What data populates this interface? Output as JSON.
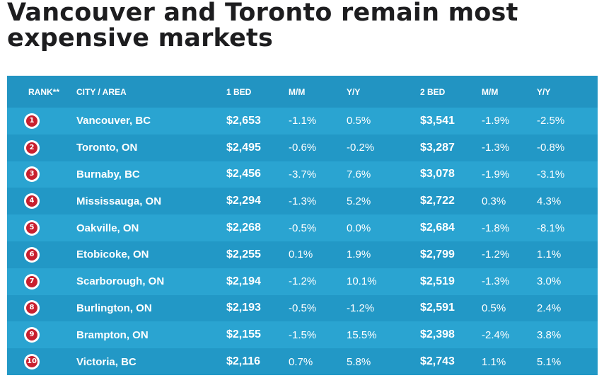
{
  "title": "Vancouver and Toronto remain most expensive markets",
  "colors": {
    "header_bg": "#2294c2",
    "row_light": "#2aa4d1",
    "row_dark": "#2298c6",
    "badge": "#c8202f",
    "text": "#ffffff"
  },
  "chart_data": {
    "type": "table",
    "title": "Vancouver and Toronto remain most expensive markets",
    "columns": [
      "RANK**",
      "CITY / AREA",
      "1 BED",
      "M/M",
      "Y/Y",
      "2 BED",
      "M/M",
      "Y/Y"
    ],
    "rows": [
      {
        "rank": "1",
        "city": "Vancouver, BC",
        "bed1": "$2,653",
        "mm1": "-1.1%",
        "yy1": "0.5%",
        "bed2": "$3,541",
        "mm2": "-1.9%",
        "yy2": "-2.5%"
      },
      {
        "rank": "2",
        "city": "Toronto, ON",
        "bed1": "$2,495",
        "mm1": "-0.6%",
        "yy1": "-0.2%",
        "bed2": "$3,287",
        "mm2": "-1.3%",
        "yy2": "-0.8%"
      },
      {
        "rank": "3",
        "city": "Burnaby, BC",
        "bed1": "$2,456",
        "mm1": "-3.7%",
        "yy1": "7.6%",
        "bed2": "$3,078",
        "mm2": "-1.9%",
        "yy2": "-3.1%"
      },
      {
        "rank": "4",
        "city": "Mississauga, ON",
        "bed1": "$2,294",
        "mm1": "-1.3%",
        "yy1": "5.2%",
        "bed2": "$2,722",
        "mm2": "0.3%",
        "yy2": "4.3%"
      },
      {
        "rank": "5",
        "city": "Oakville, ON",
        "bed1": "$2,268",
        "mm1": "-0.5%",
        "yy1": "0.0%",
        "bed2": "$2,684",
        "mm2": "-1.8%",
        "yy2": "-8.1%"
      },
      {
        "rank": "6",
        "city": "Etobicoke, ON",
        "bed1": "$2,255",
        "mm1": "0.1%",
        "yy1": "1.9%",
        "bed2": "$2,799",
        "mm2": "-1.2%",
        "yy2": "1.1%"
      },
      {
        "rank": "7",
        "city": "Scarborough, ON",
        "bed1": "$2,194",
        "mm1": "-1.2%",
        "yy1": "10.1%",
        "bed2": "$2,519",
        "mm2": "-1.3%",
        "yy2": "3.0%"
      },
      {
        "rank": "8",
        "city": "Burlington, ON",
        "bed1": "$2,193",
        "mm1": "-0.5%",
        "yy1": "-1.2%",
        "bed2": "$2,591",
        "mm2": "0.5%",
        "yy2": "2.4%"
      },
      {
        "rank": "9",
        "city": "Brampton, ON",
        "bed1": "$2,155",
        "mm1": "-1.5%",
        "yy1": "15.5%",
        "bed2": "$2,398",
        "mm2": "-2.4%",
        "yy2": "3.8%"
      },
      {
        "rank": "10",
        "city": "Victoria, BC",
        "bed1": "$2,116",
        "mm1": "0.7%",
        "yy1": "5.8%",
        "bed2": "$2,743",
        "mm2": "1.1%",
        "yy2": "5.1%"
      }
    ]
  }
}
